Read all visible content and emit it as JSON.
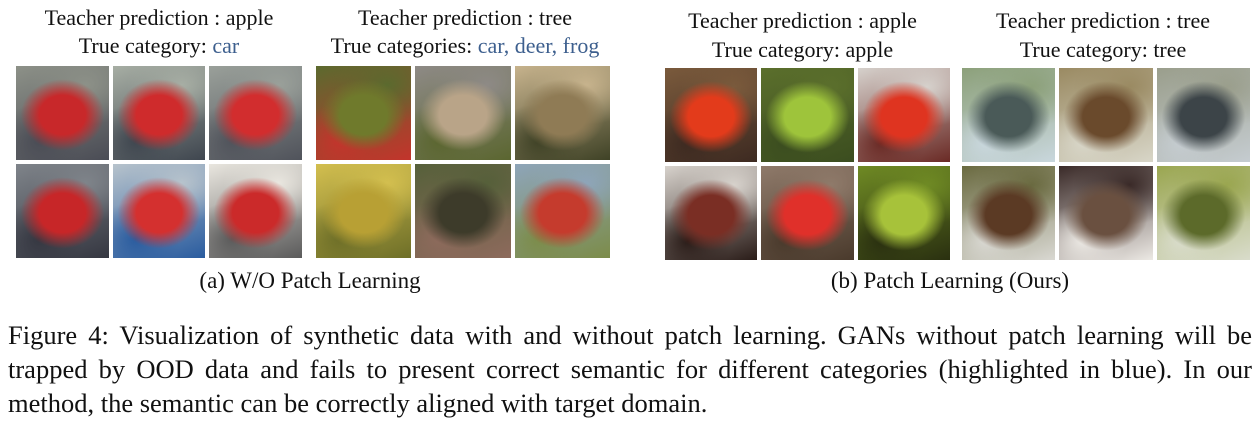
{
  "panels": [
    {
      "groups": [
        {
          "teacher": "Teacher prediction : apple",
          "true_prefix": "True category: ",
          "true_value": "car",
          "tiles": [
            {
              "desc": "red car",
              "c1": "#c8282a",
              "c2": "#4a4c55",
              "c3": "#8d9188"
            },
            {
              "desc": "red car",
              "c1": "#cf2b2c",
              "c2": "#3f464f",
              "c3": "#a7aea4"
            },
            {
              "desc": "red car",
              "c1": "#d22d2e",
              "c2": "#50535b",
              "c3": "#9aa09a"
            },
            {
              "desc": "red car",
              "c1": "#c72628",
              "c2": "#353741",
              "c3": "#7f848a"
            },
            {
              "desc": "red car",
              "c1": "#d4302f",
              "c2": "#2a5c9f",
              "c3": "#b7c3cc"
            },
            {
              "desc": "red car",
              "c1": "#cb2a2a",
              "c2": "#5b5b5b",
              "c3": "#e9e6df"
            }
          ]
        },
        {
          "teacher": "Teacher prediction : tree",
          "true_prefix": "True categories: ",
          "true_value": "car, deer, frog",
          "tiles": [
            {
              "desc": "green field",
              "c1": "#6f7a2c",
              "c2": "#c3342c",
              "c3": "#5b6a2e"
            },
            {
              "desc": "foliage",
              "c1": "#b9a488",
              "c2": "#5b6630",
              "c3": "#8e8a86"
            },
            {
              "desc": "brush",
              "c1": "#8f7b55",
              "c2": "#3f4226",
              "c3": "#c7b38d"
            },
            {
              "desc": "yellow foliage",
              "c1": "#b8a034",
              "c2": "#6e6f28",
              "c3": "#d3bf4f"
            },
            {
              "desc": "dark foliage",
              "c1": "#3d3b2a",
              "c2": "#8d6a5c",
              "c3": "#56603a"
            },
            {
              "desc": "red shape",
              "c1": "#c53b2d",
              "c2": "#7c8c4a",
              "c3": "#8ea5b9"
            }
          ]
        }
      ],
      "caption": "(a) W/O Patch Learning"
    },
    {
      "groups": [
        {
          "teacher": "Teacher prediction : apple",
          "true_prefix": "True category: ",
          "true_value": "apple",
          "tiles": [
            {
              "desc": "apple",
              "c1": "#e33b1b",
              "c2": "#3d2a21",
              "c3": "#7a5a3c"
            },
            {
              "desc": "apple",
              "c1": "#9ec43b",
              "c2": "#3b4d1f",
              "c3": "#5b6f2c"
            },
            {
              "desc": "apple",
              "c1": "#df3420",
              "c2": "#6a2a25",
              "c3": "#d6d1cc"
            },
            {
              "desc": "apple",
              "c1": "#7a2e24",
              "c2": "#2a1c18",
              "c3": "#d7d2cc"
            },
            {
              "desc": "apple",
              "c1": "#e0302a",
              "c2": "#4a3a2c",
              "c3": "#8f7a6a"
            },
            {
              "desc": "apple",
              "c1": "#a7c23a",
              "c2": "#2a3010",
              "c3": "#6f8a24"
            }
          ]
        },
        {
          "teacher": "Teacher prediction : tree",
          "true_prefix": "True category: ",
          "true_value": "tree",
          "tiles": [
            {
              "desc": "tree",
              "c1": "#4a5a58",
              "c2": "#c9d7dd",
              "c3": "#8ca07a"
            },
            {
              "desc": "tree",
              "c1": "#6a4a2c",
              "c2": "#d8d6c8",
              "c3": "#9a8a62"
            },
            {
              "desc": "tree",
              "c1": "#3c4448",
              "c2": "#c5ccd0",
              "c3": "#9a9e8c"
            },
            {
              "desc": "tree",
              "c1": "#5b3a24",
              "c2": "#d9d8d2",
              "c3": "#6a6a40"
            },
            {
              "desc": "tree",
              "c1": "#6a5040",
              "c2": "#ece9e4",
              "c3": "#3a2a28"
            },
            {
              "desc": "tree",
              "c1": "#5c6a2a",
              "c2": "#d9dccb",
              "c3": "#9aa650"
            }
          ]
        }
      ],
      "caption": "(b) Patch Learning (Ours)"
    }
  ],
  "figure_caption": "Figure 4: Visualization of synthetic data with and without patch learning. GANs without patch learning will be trapped by OOD data and fails to present correct semantic for different categories (highlighted in blue). In our method, the semantic can be correctly aligned with target domain."
}
